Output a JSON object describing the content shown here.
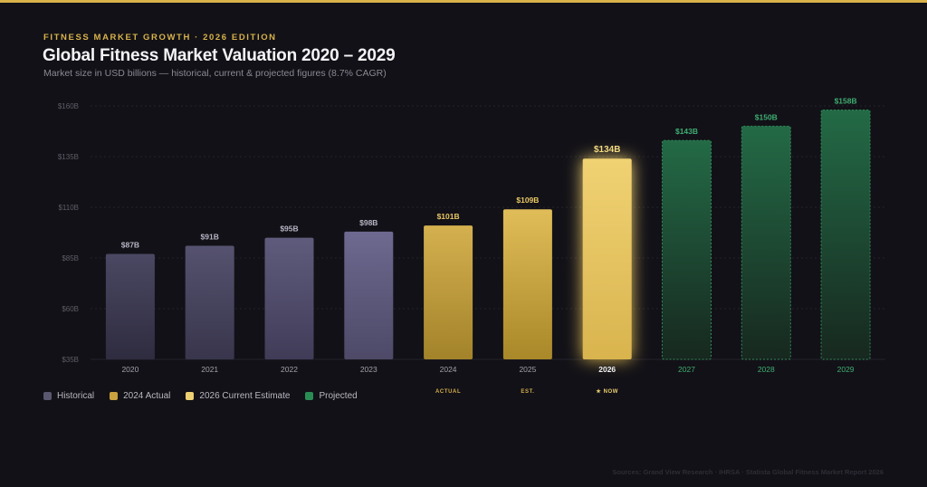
{
  "header": {
    "eyebrow": "FITNESS MARKET GROWTH · 2026 EDITION",
    "title": "Global Fitness Market Valuation 2020 – 2029",
    "subtitle": "Market size in USD billions — historical, current & projected figures (8.7% CAGR)"
  },
  "chart_data": {
    "type": "bar",
    "categories": [
      "2020",
      "2021",
      "2022",
      "2023",
      "2024",
      "2025",
      "2026",
      "2027",
      "2028",
      "2029"
    ],
    "values": [
      87,
      91,
      95,
      98,
      101,
      109,
      134,
      143,
      150,
      158
    ],
    "value_labels": [
      "$87B",
      "$91B",
      "$95B",
      "$98B",
      "$101B",
      "$109B",
      "$134B",
      "$143B",
      "$150B",
      "$158B"
    ],
    "groups": [
      "historical",
      "historical",
      "historical",
      "historical",
      "actual",
      "actual",
      "current",
      "projected",
      "projected",
      "projected"
    ],
    "sublabels": [
      "",
      "",
      "",
      "",
      "ACTUAL",
      "EST.",
      "★ NOW",
      "",
      "",
      ""
    ],
    "ylim": [
      35,
      160
    ],
    "yticks": [
      35,
      60,
      85,
      110,
      135,
      160
    ],
    "ytick_labels": [
      "$35B",
      "$60B",
      "$85B",
      "$110B",
      "$135B",
      "$160B"
    ],
    "grid": true,
    "legend_position": "bottom-left"
  },
  "legend": [
    {
      "label": "Historical",
      "color": "#5a5770"
    },
    {
      "label": "2024 Actual",
      "color": "#c9a13e"
    },
    {
      "label": "2026 Current Estimate",
      "color": "#ecd072"
    },
    {
      "label": "Projected",
      "color": "#2a8c55"
    }
  ],
  "colors": {
    "accent": "#d8b24a",
    "historical_top": "#4a4862",
    "historical_bottom": "#302d42",
    "actual_top": "#d2ad4c",
    "actual_bottom": "#a88728",
    "current": "#ecd072",
    "projected_top": "#236b47",
    "projected_bottom": "#16271f",
    "projected_text": "#3fae72"
  },
  "source": "Sources: Grand View Research · IHRSA · Statista Global Fitness Market Report 2026"
}
